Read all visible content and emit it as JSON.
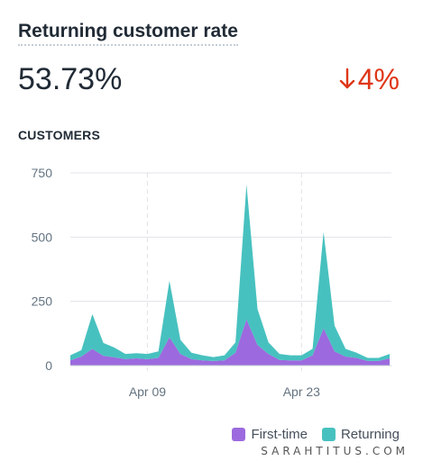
{
  "title": "Returning customer rate",
  "metric": {
    "value": "53.73%",
    "change": "4%",
    "change_direction": "down",
    "change_color": "#de3618",
    "change_icon": "arrow-down-icon"
  },
  "section_label": "CUSTOMERS",
  "chart_data": {
    "type": "area",
    "stacked": true,
    "title": "",
    "xlabel": "",
    "ylabel": "",
    "ylim": [
      0,
      750
    ],
    "yticks": [
      0,
      250,
      500,
      750
    ],
    "xticks": [
      {
        "index": 7,
        "label": "Apr 09"
      },
      {
        "index": 21,
        "label": "Apr 23"
      }
    ],
    "grid": true,
    "series": [
      {
        "name": "First-time",
        "color": "#9c6ade",
        "values": [
          20,
          35,
          65,
          38,
          32,
          25,
          28,
          25,
          30,
          110,
          45,
          25,
          20,
          18,
          20,
          50,
          180,
          80,
          45,
          22,
          20,
          20,
          40,
          145,
          55,
          35,
          30,
          18,
          18,
          28
        ]
      },
      {
        "name": "Returning",
        "color": "#47c1bf",
        "values": [
          20,
          25,
          135,
          50,
          38,
          20,
          20,
          20,
          25,
          220,
          55,
          25,
          20,
          15,
          20,
          40,
          525,
          140,
          45,
          23,
          20,
          20,
          25,
          375,
          100,
          30,
          20,
          12,
          12,
          17
        ]
      }
    ]
  },
  "legend": {
    "items": [
      {
        "label": "First-time",
        "color": "#9c6ade"
      },
      {
        "label": "Returning",
        "color": "#47c1bf"
      }
    ]
  },
  "watermark": "SARAHTITUS.COM"
}
